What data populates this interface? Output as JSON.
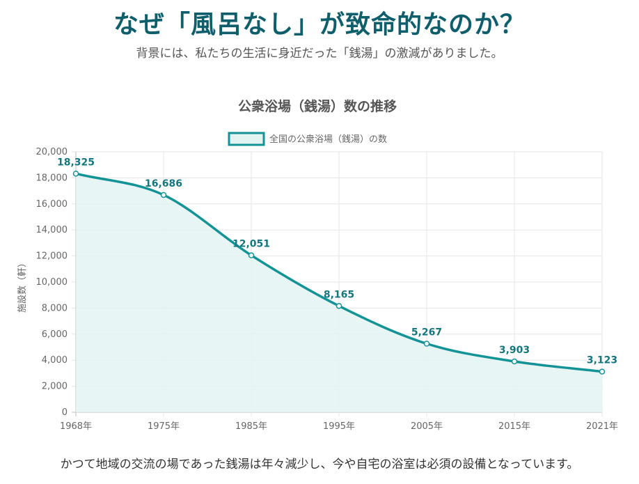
{
  "header": {
    "title": "なぜ「風呂なし」が致命的なのか？",
    "subtitle": "背景には、私たちの生活に身近だった「銭湯」の激減がありました。"
  },
  "footer": {
    "text": "かつて地域の交流の場であった銭湯は年々減少し、今や自宅の浴室は必須の設備となっています。"
  },
  "colors": {
    "line": "#139396",
    "fill": "#e3f3f2",
    "label": "#157680",
    "title": "#0f5e6b"
  },
  "chart_data": {
    "type": "line",
    "title": "公衆浴場（銭湯）数の推移",
    "ylabel": "施設数（軒）",
    "xlabel": "",
    "categories": [
      "1968年",
      "1975年",
      "1985年",
      "1995年",
      "2005年",
      "2015年",
      "2021年"
    ],
    "series": [
      {
        "name": "全国の公衆浴場（銭湯）の数",
        "values": [
          18325,
          16686,
          12051,
          8165,
          5267,
          3903,
          3123
        ]
      }
    ],
    "data_labels": [
      "18,325",
      "16,686",
      "12,051",
      "8,165",
      "5,267",
      "3,903",
      "3,123"
    ],
    "yticks": [
      "0",
      "2,000",
      "4,000",
      "6,000",
      "8,000",
      "10,000",
      "12,000",
      "14,000",
      "16,000",
      "18,000",
      "20,000"
    ],
    "ylim": [
      0,
      20000
    ],
    "grid": true,
    "area_fill": true,
    "legend_position": "top-center"
  }
}
